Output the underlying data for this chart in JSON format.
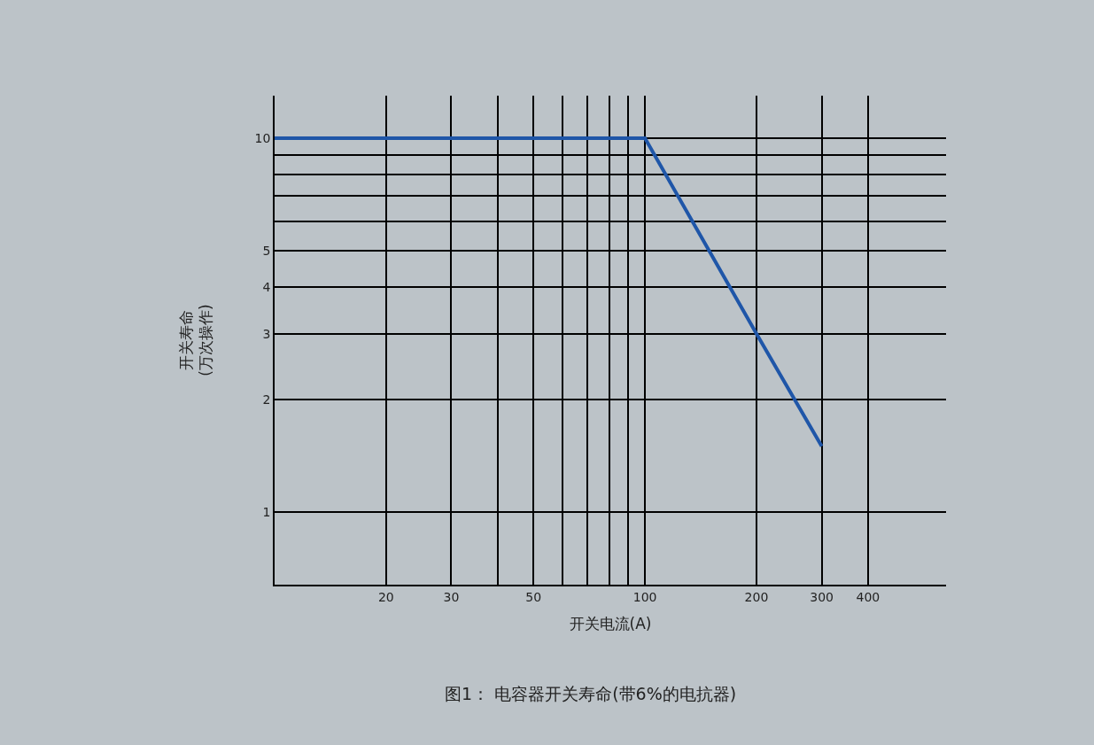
{
  "chart_data": {
    "type": "line",
    "xlabel": "开关电流(A)",
    "ylabel": "开关寿命\n(万次操作)",
    "annotations": [
      "图1： 电容器开关寿命(带6%的电抗器)"
    ],
    "log": "xy",
    "grid": true,
    "marker": "none",
    "line_style": "solid",
    "x": [
      10,
      100,
      200,
      300
    ],
    "series": [
      {
        "color": "#1f56a8",
        "values": [
          10,
          10,
          3,
          1.5
        ]
      }
    ],
    "xlim": [
      10,
      650
    ],
    "ylim": [
      0.64,
      13
    ],
    "xticks": [
      {
        "value": 10,
        "label": null
      },
      20,
      30,
      {
        "value": 40,
        "label": null
      },
      50,
      {
        "value": 60,
        "label": null
      },
      {
        "value": 70,
        "label": null
      },
      {
        "value": 80,
        "label": null
      },
      {
        "value": 90,
        "label": null
      },
      100,
      200,
      300,
      400
    ],
    "yticks": [
      1,
      2,
      3,
      4,
      5,
      {
        "value": 6,
        "label": null
      },
      {
        "value": 7,
        "label": null
      },
      {
        "value": 8,
        "label": null
      },
      {
        "value": 9,
        "label": null
      },
      10
    ]
  }
}
